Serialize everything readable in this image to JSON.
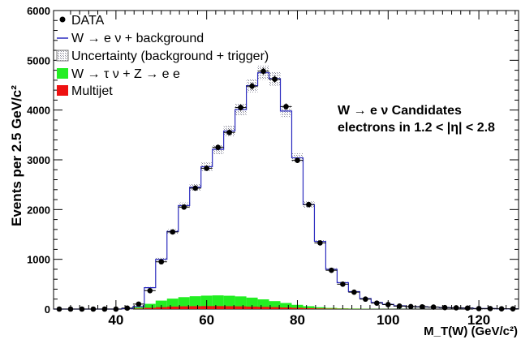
{
  "chart_data": {
    "type": "histogram",
    "ylabel": "Events per 2.5 GeV/c²",
    "xlabel": "M_T(W) (GeV/c²)",
    "xlim": [
      26.25,
      128.75
    ],
    "ylim": [
      0,
      6000
    ],
    "bin_width": 2.5,
    "x_ticks": [
      40,
      60,
      80,
      100,
      120
    ],
    "y_ticks": [
      0,
      1000,
      2000,
      3000,
      4000,
      5000,
      6000
    ],
    "annotation": [
      "W → e ν Candidates",
      "electrons in 1.2 < |η| < 2.8"
    ],
    "legend": [
      {
        "label": "DATA",
        "marker": "dot"
      },
      {
        "label": "W → e ν  + background",
        "marker": "line"
      },
      {
        "label": "Uncertainty (background + trigger)",
        "marker": "hatched"
      },
      {
        "label": "W → τ ν  +  Z → e e",
        "marker": "green-fill"
      },
      {
        "label": "Multijet",
        "marker": "red-fill"
      }
    ],
    "bin_centers": [
      27.5,
      30,
      32.5,
      35,
      37.5,
      40,
      42.5,
      45,
      47.5,
      50,
      52.5,
      55,
      57.5,
      60,
      62.5,
      65,
      67.5,
      70,
      72.5,
      75,
      77.5,
      80,
      82.5,
      85,
      87.5,
      90,
      92.5,
      95,
      97.5,
      100,
      102.5,
      105,
      107.5,
      110,
      112.5,
      115,
      117.5,
      120,
      122.5,
      125,
      127.5
    ],
    "series": [
      {
        "name": "DATA",
        "values": [
          0,
          0,
          0,
          0,
          0,
          0,
          20,
          100,
          370,
          950,
          1550,
          2050,
          2430,
          2830,
          3250,
          3550,
          4050,
          4480,
          4780,
          4620,
          4070,
          2990,
          2100,
          1330,
          780,
          500,
          340,
          200,
          120,
          90,
          60,
          50,
          45,
          40,
          30,
          25,
          20,
          10,
          10,
          5,
          5
        ]
      },
      {
        "name": "W → e ν  + background",
        "values": [
          0,
          0,
          0,
          0,
          0,
          0,
          10,
          50,
          430,
          1000,
          1560,
          2080,
          2450,
          2860,
          3210,
          3580,
          4010,
          4490,
          4750,
          4630,
          3980,
          3040,
          2100,
          1360,
          800,
          530,
          350,
          210,
          130,
          95,
          65,
          50,
          45,
          40,
          30,
          25,
          20,
          10,
          10,
          5,
          5
        ]
      },
      {
        "name": "W → τ ν  +  Z → e e",
        "values": [
          0,
          0,
          0,
          0,
          0,
          0,
          5,
          30,
          80,
          130,
          160,
          185,
          200,
          210,
          215,
          210,
          200,
          180,
          150,
          120,
          90,
          60,
          40,
          25,
          15,
          10,
          8,
          5,
          3,
          2,
          2,
          1,
          1,
          0,
          0,
          0,
          0,
          0,
          0,
          0,
          0
        ]
      },
      {
        "name": "Multijet",
        "values": [
          0,
          0,
          0,
          0,
          0,
          0,
          2,
          10,
          25,
          40,
          50,
          55,
          58,
          60,
          60,
          58,
          55,
          50,
          45,
          40,
          32,
          25,
          18,
          12,
          8,
          5,
          3,
          2,
          1,
          1,
          0,
          0,
          0,
          0,
          0,
          0,
          0,
          0,
          0,
          0,
          0
        ]
      }
    ]
  },
  "colors": {
    "data": "#000000",
    "mc_line": "#2b2bbf",
    "uncertainty": "#9a9aaa",
    "ewk": "#22ee22",
    "multijet": "#ee1111"
  }
}
